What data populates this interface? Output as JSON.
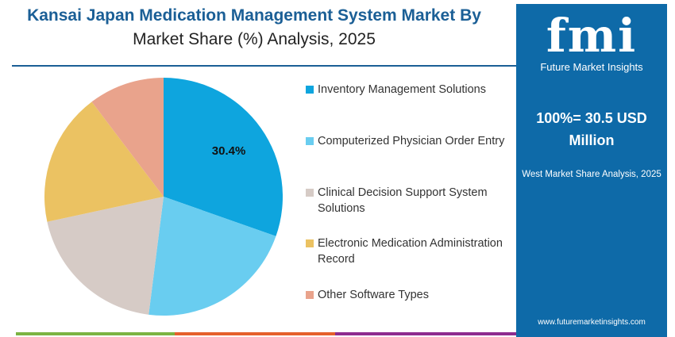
{
  "title_line1": "Kansai Japan Medication Management System Market By",
  "title_line2": "Market Share (%) Analysis, 2025",
  "panel": {
    "logo": "fmi",
    "logo_sub": "Future Market Insights",
    "headline": "100%= 30.5 USD Million",
    "subtitle": "West Market Share Analysis, 2025",
    "url": "www.futuremarketinsights.com",
    "color": "#0e6aa8"
  },
  "chart_data": {
    "type": "pie",
    "categories": [
      "Inventory Management Solutions",
      "Computerized Physician Order Entry",
      "Clinical Decision Support System Solutions",
      "Electronic Medication Administration Record",
      "Other Software Types"
    ],
    "values": [
      30.4,
      21.6,
      19.6,
      18.1,
      10.3
    ],
    "colors": [
      "#0ea5de",
      "#69cdf0",
      "#d6cbc6",
      "#ebc262",
      "#e9a38c"
    ],
    "data_labels": [
      "30.4%",
      "",
      "",
      "",
      ""
    ],
    "legend_position": "right"
  }
}
